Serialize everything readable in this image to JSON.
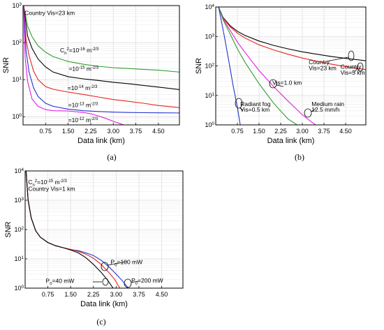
{
  "chart_data": [
    {
      "id": "a",
      "type": "line",
      "caption": "(a)",
      "xlabel": "Data link (km)",
      "ylabel": "SNR",
      "xlim": [
        0,
        5.2
      ],
      "ylim": [
        0.6,
        1000
      ],
      "yscale": "log",
      "grid": true,
      "xticks": [
        0.75,
        1.5,
        2.25,
        3.0,
        3.75,
        4.5
      ],
      "xtick_labels": [
        "0.75",
        "1.50",
        "2.25",
        "3.00",
        "3.75",
        "4.50"
      ],
      "yticks": [
        1,
        10,
        100,
        1000
      ],
      "ytick_labels": [
        "10^0",
        "10^1",
        "10^2",
        "10^3"
      ],
      "notes": [
        {
          "text": "Country Vis=23 km",
          "x": 0.05,
          "y": 560
        }
      ],
      "series": [
        {
          "color": "#2e9e2e",
          "x": [
            0.02,
            0.15,
            0.3,
            0.5,
            0.75,
            1.0,
            1.5,
            2.0,
            2.5,
            3.0,
            3.5,
            4.0,
            4.5,
            5.2
          ],
          "values": [
            1000,
            280,
            145,
            82,
            55,
            42,
            31,
            26,
            23,
            21,
            20,
            19,
            18,
            16
          ]
        },
        {
          "color": "#000000",
          "x": [
            0.02,
            0.15,
            0.3,
            0.5,
            0.75,
            1.0,
            1.5,
            2.0,
            2.5,
            3.0,
            3.5,
            4.0,
            4.5,
            5.2
          ],
          "values": [
            1000,
            150,
            70,
            36,
            22,
            16,
            12,
            10.5,
            9.5,
            8.5,
            7.8,
            7.0,
            6.3,
            5.4
          ]
        },
        {
          "color": "#e8231f",
          "x": [
            0.02,
            0.1,
            0.2,
            0.35,
            0.5,
            0.75,
            1.0,
            1.5,
            2.0,
            2.5,
            3.0,
            3.5,
            4.0,
            4.5,
            5.2
          ],
          "values": [
            1000,
            120,
            45,
            17,
            10,
            6.5,
            5.5,
            4.6,
            4.0,
            3.4,
            2.9,
            2.6,
            2.3,
            2.0,
            1.75
          ]
        },
        {
          "color": "#2233cc",
          "x": [
            0.02,
            0.1,
            0.2,
            0.35,
            0.5,
            0.75,
            1.0,
            1.5,
            2.0,
            2.5,
            3.0,
            3.5,
            4.0,
            4.5,
            5.2
          ],
          "values": [
            1000,
            60,
            16,
            6,
            3.5,
            2.3,
            1.9,
            1.6,
            1.45,
            1.38,
            1.33,
            1.3,
            1.28,
            1.27,
            1.26
          ]
        },
        {
          "color": "#e020e0",
          "x": [
            0.02,
            0.07,
            0.15,
            0.3,
            0.5,
            0.75,
            1.0,
            1.5,
            2.0,
            2.25,
            2.5,
            2.75,
            3.0,
            3.2,
            3.35
          ],
          "values": [
            1000,
            40,
            9,
            3,
            1.9,
            1.55,
            1.45,
            1.42,
            1.3,
            1.2,
            1.05,
            0.9,
            0.75,
            0.66,
            0.6
          ]
        }
      ],
      "labels": [
        {
          "text": "C_n^2=10^-16 m^-2/3",
          "x": 1.23,
          "y": 55
        },
        {
          "text": "=10^-15 m^-2/3",
          "x": 1.52,
          "y": 17.5
        },
        {
          "text": "=10^-14 m^-2/3",
          "x": 1.48,
          "y": 5.3
        },
        {
          "text": "=10^-13 m^-2/3",
          "x": 1.5,
          "y": 1.8
        },
        {
          "text": "=10^-12 m^-2/3",
          "x": 1.5,
          "y": 0.72
        }
      ]
    },
    {
      "id": "b",
      "type": "line",
      "caption": "(b)",
      "xlabel": "Data link (km)",
      "ylabel": "SNR",
      "xlim": [
        0,
        5.2
      ],
      "ylim": [
        1,
        10000
      ],
      "yscale": "log",
      "grid": true,
      "xticks": [
        0.75,
        1.5,
        2.25,
        3.0,
        3.75,
        4.5
      ],
      "xtick_labels": [
        "0.75",
        "1.50",
        "2.25",
        "3.00",
        "3.75",
        "4.50"
      ],
      "yticks": [
        1,
        10,
        100,
        1000,
        10000
      ],
      "ytick_labels": [
        "10^0",
        "10^1",
        "10^2",
        "10^3",
        "10^4"
      ],
      "series": [
        {
          "color": "#000000",
          "x": [
            0.1,
            0.25,
            0.5,
            0.75,
            1.0,
            1.5,
            2.0,
            2.5,
            3.0,
            3.5,
            4.0,
            4.5,
            5.2
          ],
          "values": [
            10000,
            4500,
            2300,
            1500,
            1100,
            700,
            500,
            380,
            300,
            250,
            210,
            180,
            150
          ]
        },
        {
          "color": "#e8231f",
          "x": [
            0.1,
            0.25,
            0.5,
            0.75,
            1.0,
            1.5,
            2.0,
            2.5,
            3.0,
            3.5,
            4.0,
            4.5,
            5.2
          ],
          "values": [
            10000,
            4300,
            2100,
            1300,
            900,
            520,
            350,
            250,
            185,
            145,
            115,
            95,
            75
          ]
        },
        {
          "color": "#e020e0",
          "x": [
            0.1,
            0.25,
            0.5,
            0.75,
            1.0,
            1.5,
            2.0,
            2.5,
            3.0,
            3.3,
            3.46
          ],
          "values": [
            10000,
            4000,
            1600,
            650,
            300,
            70,
            20,
            6.5,
            2.2,
            1.3,
            1
          ]
        },
        {
          "color": "#2e9e2e",
          "x": [
            0.1,
            0.25,
            0.5,
            0.75,
            1.0,
            1.5,
            2.0,
            2.5,
            2.82
          ],
          "values": [
            10000,
            3800,
            1200,
            380,
            140,
            25,
            5.5,
            1.6,
            1
          ]
        },
        {
          "color": "#2233cc",
          "x": [
            0.1,
            0.3,
            0.5,
            0.6,
            0.75,
            0.85
          ],
          "values": [
            10000,
            1000,
            80,
            22,
            4,
            1
          ]
        }
      ],
      "labels": [
        {
          "text": "Country",
          "x": 3.22,
          "y": 115
        },
        {
          "text": "Vis=23 km",
          "x": 3.22,
          "y": 72
        },
        {
          "text": "Country",
          "x": 4.32,
          "y": 80
        },
        {
          "text": "Vis=5 km",
          "x": 4.32,
          "y": 50
        },
        {
          "text": "Vis=1.0 km",
          "x": 1.96,
          "y": 23
        },
        {
          "text": "Radiant fog",
          "x": 0.85,
          "y": 4.4
        },
        {
          "text": "Vis=0.5 km",
          "x": 0.85,
          "y": 2.8
        },
        {
          "text": "Medium rain",
          "x": 3.32,
          "y": 4.4
        },
        {
          "text": "12.5 mm/h",
          "x": 3.32,
          "y": 2.8
        }
      ]
    },
    {
      "id": "c",
      "type": "line",
      "caption": "(c)",
      "xlabel": "Data link (km)",
      "ylabel": "SNR",
      "xlim": [
        0,
        5.2
      ],
      "ylim": [
        1,
        10000
      ],
      "yscale": "log",
      "grid": true,
      "xticks": [
        0.75,
        1.5,
        2.25,
        3.0,
        3.75,
        4.5
      ],
      "xtick_labels": [
        "0.75",
        "1.50",
        "2.25",
        "3.00",
        "3.75",
        "4.50"
      ],
      "yticks": [
        1,
        10,
        100,
        1000,
        10000
      ],
      "ytick_labels": [
        "10^0",
        "10^1",
        "10^2",
        "10^3",
        "10^4"
      ],
      "notes": [
        {
          "text": "C_n^2=10^-15 m^-2/3",
          "x": 0.1,
          "y": 3500
        },
        {
          "text": "Country Vis=1 km",
          "x": 0.1,
          "y": 2100
        }
      ],
      "series": [
        {
          "color": "#2233cc",
          "x": [
            0.03,
            0.1,
            0.2,
            0.35,
            0.5,
            0.75,
            1.0,
            1.25,
            1.5,
            1.75,
            2.0,
            2.25,
            2.5,
            2.75,
            3.0,
            3.2,
            3.4
          ],
          "values": [
            10000,
            1000,
            250,
            90,
            55,
            36,
            28,
            24,
            21,
            19,
            16,
            13,
            9,
            5.5,
            3,
            1.8,
            1
          ]
        },
        {
          "color": "#e8231f",
          "x": [
            0.03,
            0.1,
            0.2,
            0.35,
            0.5,
            0.75,
            1.0,
            1.25,
            1.5,
            1.75,
            2.0,
            2.25,
            2.5,
            2.75,
            2.95,
            3.12
          ],
          "values": [
            10000,
            1000,
            250,
            90,
            55,
            36,
            28,
            24,
            21,
            18,
            14.5,
            10.5,
            6.5,
            3.5,
            2,
            1
          ]
        },
        {
          "color": "#000000",
          "x": [
            0.03,
            0.1,
            0.2,
            0.35,
            0.5,
            0.75,
            1.0,
            1.25,
            1.5,
            1.75,
            2.0,
            2.25,
            2.5,
            2.7,
            2.9
          ],
          "values": [
            10000,
            1000,
            250,
            90,
            55,
            36,
            28,
            24,
            20,
            16,
            11,
            6.5,
            3.5,
            2,
            1
          ]
        }
      ],
      "labels": [
        {
          "text": "P_0=100 mW",
          "x": 2.82,
          "y": 6.6
        },
        {
          "text": "P_0=40 mW",
          "x": 0.68,
          "y": 1.5
        },
        {
          "text": "P_0=200 mW",
          "x": 3.5,
          "y": 1.55
        }
      ]
    }
  ]
}
